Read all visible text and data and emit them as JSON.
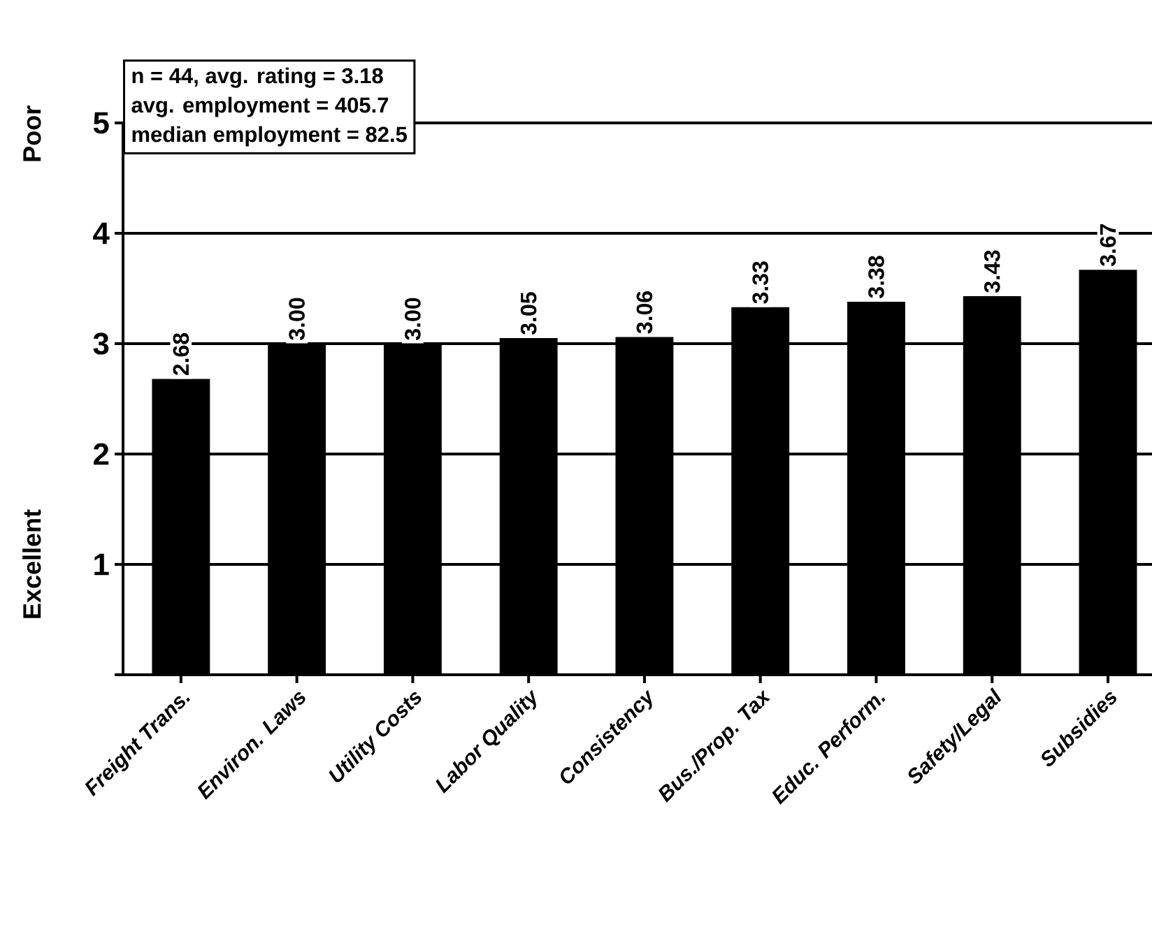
{
  "chart_data": {
    "type": "bar",
    "categories": [
      "Freight Trans.",
      "Environ. Laws",
      "Utility Costs",
      "Labor Quality",
      "Consistency",
      "Bus./Prop. Tax",
      "Educ. Perform.",
      "Safety/Legal",
      "Subsidies"
    ],
    "values": [
      2.68,
      3.0,
      3.0,
      3.05,
      3.06,
      3.33,
      3.38,
      3.43,
      3.67
    ],
    "color": "#000000",
    "ylim": [
      0,
      5
    ],
    "yticks": [
      {
        "value": 0,
        "label": null
      },
      1,
      2,
      3,
      4,
      5
    ],
    "grid": "y",
    "value_labels": [
      "2.68",
      "3.00",
      "3.00",
      "3.05",
      "3.06",
      "3.33",
      "3.38",
      "3.43",
      "3.67"
    ],
    "ylabel": "Excellent",
    "annotations": [
      "Poor",
      "n = 44, avg. rating = 3.18",
      "avg. employment = 405.7",
      "median employment = 82.5"
    ]
  }
}
